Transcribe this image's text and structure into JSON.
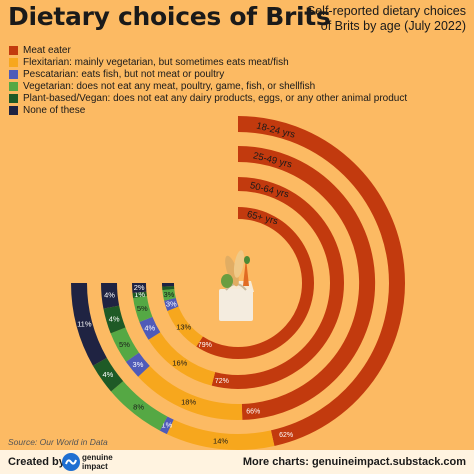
{
  "title": "Dietary choices of Brits",
  "subtitle": "Self-reported dietary choices of Brits by age (July 2022)",
  "source": "Source: Our World in Data",
  "footer": {
    "created_by": "Created by",
    "brand_line1": "genuine",
    "brand_line2": "impact",
    "more_charts": "More charts: genuineimpact.substack.com"
  },
  "colors": {
    "meat_eater": "#c23a0e",
    "flexitarian": "#f7a71d",
    "pescatarian": "#4f5bb8",
    "vegetarian": "#55a844",
    "plant_based": "#1e5a26",
    "none": "#1f2342",
    "background": "#fcba63"
  },
  "chart_data": {
    "type": "radial-bar",
    "title": "Dietary choices of Brits",
    "subtitle": "Self-reported dietary choices of Brits by age (July 2022)",
    "legend_position": "top-left",
    "categories": [
      "Meat eater",
      "Flexitarian: mainly vegetarian, but sometimes eats meat/fish",
      "Pescatarian: eats fish, but not meat or poultry",
      "Vegetarian: does not eat any meat, poultry, game, fish, or shellfish",
      "Plant-based/Vegan: does not eat any dairy products, eggs, or any other animal product",
      "None of these"
    ],
    "series": [
      {
        "name": "18-24 yrs",
        "values": [
          62,
          14,
          1,
          8,
          4,
          11
        ],
        "labels": [
          "62%",
          "14%",
          "1%",
          "8%",
          "4%",
          "11%"
        ]
      },
      {
        "name": "25-49 yrs",
        "values": [
          66,
          18,
          3,
          5,
          4,
          4
        ],
        "labels": [
          "66%",
          "18%",
          "3%",
          "5%",
          "4%",
          "4%"
        ]
      },
      {
        "name": "50-64 yrs",
        "values": [
          72,
          16,
          4,
          5,
          1,
          2
        ],
        "labels": [
          "72%",
          "16%",
          "4%",
          "5%",
          "1%",
          "2%"
        ]
      },
      {
        "name": "65+ yrs",
        "values": [
          79,
          13,
          3,
          3,
          1,
          1
        ],
        "labels": [
          "79%",
          "13%",
          "3%",
          "3%",
          "",
          ""
        ]
      }
    ]
  }
}
